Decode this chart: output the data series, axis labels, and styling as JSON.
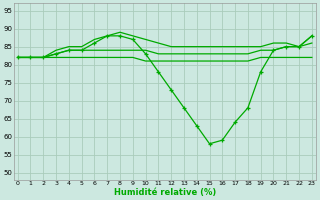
{
  "x_ticks": [
    0,
    1,
    2,
    3,
    4,
    5,
    6,
    7,
    8,
    9,
    10,
    11,
    12,
    13,
    14,
    15,
    16,
    17,
    18,
    19,
    20,
    21,
    22,
    23
  ],
  "xlabel": "Humidité relative (%)",
  "ylim": [
    48,
    97
  ],
  "xlim": [
    -0.3,
    23.3
  ],
  "yticks": [
    50,
    55,
    60,
    65,
    70,
    75,
    80,
    85,
    90,
    95
  ],
  "background_color": "#cce8e0",
  "grid_color": "#aaccbb",
  "line_color": "#00aa00",
  "series": [
    [
      82,
      82,
      82,
      84,
      85,
      85,
      87,
      88,
      89,
      88,
      87,
      86,
      85,
      85,
      85,
      85,
      85,
      85,
      85,
      85,
      86,
      86,
      85,
      88
    ],
    [
      82,
      82,
      82,
      83,
      84,
      84,
      86,
      88,
      88,
      87,
      83,
      78,
      73,
      68,
      63,
      58,
      59,
      64,
      68,
      78,
      84,
      85,
      85,
      88
    ],
    [
      82,
      82,
      82,
      83,
      84,
      84,
      84,
      84,
      84,
      84,
      84,
      83,
      83,
      83,
      83,
      83,
      83,
      83,
      83,
      84,
      84,
      85,
      85,
      86
    ],
    [
      82,
      82,
      82,
      82,
      82,
      82,
      82,
      82,
      82,
      82,
      81,
      81,
      81,
      81,
      81,
      81,
      81,
      81,
      81,
      82,
      82,
      82,
      82,
      82
    ]
  ],
  "marker_series": [
    1
  ]
}
